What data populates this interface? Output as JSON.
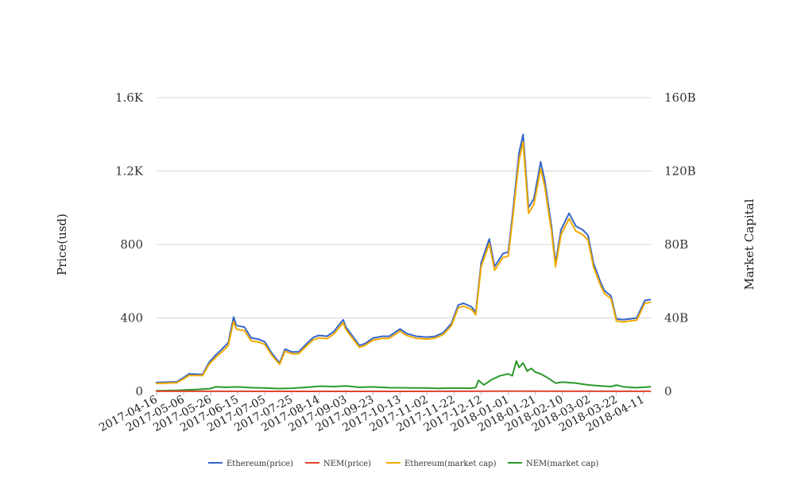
{
  "chart_data": {
    "type": "line",
    "ylabel_left": "Price(usd)",
    "ylabel_right": "Market Capital",
    "left_axis": {
      "ylim": [
        0,
        1600
      ],
      "ticks": [
        0,
        400,
        800,
        1200,
        1600
      ],
      "tick_labels": [
        "0",
        "400",
        "800",
        "1.2K",
        "1.6K"
      ]
    },
    "right_axis": {
      "ylim": [
        0,
        160
      ],
      "unit": "B",
      "ticks": [
        0,
        40,
        80,
        120,
        160
      ],
      "tick_labels": [
        "0",
        "40B",
        "80B",
        "120B",
        "160B"
      ]
    },
    "x_tick_labels": [
      "2017-04-16",
      "2017-05-06",
      "2017-05-26",
      "2017-06-15",
      "2017-07-05",
      "2017-07-25",
      "2017-08-14",
      "2017-09-03",
      "2017-09-23",
      "2017-10-13",
      "2017-11-02",
      "2017-11-22",
      "2017-12-12",
      "2018-01-01",
      "2018-01-21",
      "2018-02-10",
      "2018-03-02",
      "2018-03-22",
      "2018-04-11"
    ],
    "x_range": [
      "2017-04-16",
      "2018-04-17"
    ],
    "grid": true,
    "legend_position": "bottom",
    "series": [
      {
        "name": "Ethereum(price)",
        "axis": "left",
        "color": "#3366cc",
        "points": [
          [
            "2017-04-16",
            48
          ],
          [
            "2017-05-01",
            52
          ],
          [
            "2017-05-06",
            75
          ],
          [
            "2017-05-10",
            95
          ],
          [
            "2017-05-20",
            92
          ],
          [
            "2017-05-25",
            160
          ],
          [
            "2017-05-30",
            200
          ],
          [
            "2017-06-02",
            220
          ],
          [
            "2017-06-08",
            265
          ],
          [
            "2017-06-12",
            405
          ],
          [
            "2017-06-14",
            360
          ],
          [
            "2017-06-20",
            350
          ],
          [
            "2017-06-25",
            290
          ],
          [
            "2017-06-30",
            285
          ],
          [
            "2017-07-05",
            270
          ],
          [
            "2017-07-10",
            210
          ],
          [
            "2017-07-16",
            155
          ],
          [
            "2017-07-20",
            230
          ],
          [
            "2017-07-25",
            215
          ],
          [
            "2017-07-30",
            215
          ],
          [
            "2017-08-05",
            260
          ],
          [
            "2017-08-10",
            295
          ],
          [
            "2017-08-14",
            305
          ],
          [
            "2017-08-20",
            300
          ],
          [
            "2017-08-25",
            325
          ],
          [
            "2017-09-01",
            390
          ],
          [
            "2017-09-03",
            350
          ],
          [
            "2017-09-08",
            300
          ],
          [
            "2017-09-13",
            250
          ],
          [
            "2017-09-17",
            260
          ],
          [
            "2017-09-23",
            290
          ],
          [
            "2017-09-30",
            300
          ],
          [
            "2017-10-05",
            300
          ],
          [
            "2017-10-13",
            340
          ],
          [
            "2017-10-18",
            315
          ],
          [
            "2017-10-25",
            300
          ],
          [
            "2017-11-02",
            295
          ],
          [
            "2017-11-08",
            300
          ],
          [
            "2017-11-14",
            320
          ],
          [
            "2017-11-20",
            370
          ],
          [
            "2017-11-25",
            470
          ],
          [
            "2017-11-29",
            480
          ],
          [
            "2017-12-05",
            460
          ],
          [
            "2017-12-08",
            430
          ],
          [
            "2017-12-12",
            700
          ],
          [
            "2017-12-18",
            830
          ],
          [
            "2017-12-22",
            680
          ],
          [
            "2017-12-28",
            750
          ],
          [
            "2018-01-01",
            760
          ],
          [
            "2018-01-04",
            950
          ],
          [
            "2018-01-09",
            1300
          ],
          [
            "2018-01-12",
            1400
          ],
          [
            "2018-01-16",
            1000
          ],
          [
            "2018-01-20",
            1050
          ],
          [
            "2018-01-25",
            1250
          ],
          [
            "2018-01-28",
            1150
          ],
          [
            "2018-02-02",
            900
          ],
          [
            "2018-02-05",
            700
          ],
          [
            "2018-02-09",
            880
          ],
          [
            "2018-02-15",
            970
          ],
          [
            "2018-02-20",
            900
          ],
          [
            "2018-02-25",
            880
          ],
          [
            "2018-03-01",
            850
          ],
          [
            "2018-03-05",
            700
          ],
          [
            "2018-03-10",
            600
          ],
          [
            "2018-03-13",
            550
          ],
          [
            "2018-03-18",
            520
          ],
          [
            "2018-03-22",
            395
          ],
          [
            "2018-03-27",
            390
          ],
          [
            "2018-04-01",
            395
          ],
          [
            "2018-04-06",
            400
          ],
          [
            "2018-04-12",
            495
          ],
          [
            "2018-04-16",
            500
          ]
        ]
      },
      {
        "name": "NEM(price)",
        "axis": "left",
        "color": "#e0442a",
        "points": [
          [
            "2017-04-16",
            0.3
          ],
          [
            "2017-10-01",
            0.2
          ],
          [
            "2018-01-09",
            1.3
          ],
          [
            "2018-04-16",
            0.3
          ]
        ]
      },
      {
        "name": "Ethereum(market cap)",
        "axis": "right",
        "color": "#f2a900",
        "points": [
          [
            "2017-04-16",
            4.3
          ],
          [
            "2017-05-01",
            4.7
          ],
          [
            "2017-05-06",
            6.8
          ],
          [
            "2017-05-10",
            8.7
          ],
          [
            "2017-05-20",
            8.6
          ],
          [
            "2017-05-25",
            14.9
          ],
          [
            "2017-05-30",
            18.7
          ],
          [
            "2017-06-02",
            20.6
          ],
          [
            "2017-06-08",
            24.9
          ],
          [
            "2017-06-12",
            38.1
          ],
          [
            "2017-06-14",
            33.9
          ],
          [
            "2017-06-20",
            33.0
          ],
          [
            "2017-06-25",
            27.4
          ],
          [
            "2017-06-30",
            27.0
          ],
          [
            "2017-07-05",
            25.6
          ],
          [
            "2017-07-10",
            19.9
          ],
          [
            "2017-07-16",
            14.7
          ],
          [
            "2017-07-20",
            21.9
          ],
          [
            "2017-07-25",
            20.5
          ],
          [
            "2017-07-30",
            20.5
          ],
          [
            "2017-08-05",
            24.8
          ],
          [
            "2017-08-10",
            28.2
          ],
          [
            "2017-08-14",
            29.1
          ],
          [
            "2017-08-20",
            28.7
          ],
          [
            "2017-08-25",
            31.2
          ],
          [
            "2017-09-01",
            37.4
          ],
          [
            "2017-09-03",
            33.6
          ],
          [
            "2017-09-08",
            28.8
          ],
          [
            "2017-09-13",
            24.0
          ],
          [
            "2017-09-17",
            25.0
          ],
          [
            "2017-09-23",
            27.9
          ],
          [
            "2017-09-30",
            28.9
          ],
          [
            "2017-10-05",
            28.9
          ],
          [
            "2017-10-13",
            32.8
          ],
          [
            "2017-10-18",
            30.4
          ],
          [
            "2017-10-25",
            28.9
          ],
          [
            "2017-11-02",
            28.5
          ],
          [
            "2017-11-08",
            29.0
          ],
          [
            "2017-11-14",
            31.0
          ],
          [
            "2017-11-20",
            35.8
          ],
          [
            "2017-11-25",
            45.5
          ],
          [
            "2017-11-29",
            46.5
          ],
          [
            "2017-12-05",
            44.6
          ],
          [
            "2017-12-08",
            41.7
          ],
          [
            "2017-12-12",
            67.9
          ],
          [
            "2017-12-18",
            80.5
          ],
          [
            "2017-12-22",
            66.0
          ],
          [
            "2017-12-28",
            72.8
          ],
          [
            "2018-01-01",
            73.7
          ],
          [
            "2018-01-04",
            92.2
          ],
          [
            "2018-01-09",
            126.1
          ],
          [
            "2018-01-12",
            135.8
          ],
          [
            "2018-01-16",
            97.0
          ],
          [
            "2018-01-20",
            101.9
          ],
          [
            "2018-01-25",
            121.3
          ],
          [
            "2018-01-28",
            111.6
          ],
          [
            "2018-02-02",
            87.3
          ],
          [
            "2018-02-05",
            67.9
          ],
          [
            "2018-02-09",
            85.4
          ],
          [
            "2018-02-15",
            94.1
          ],
          [
            "2018-02-20",
            87.3
          ],
          [
            "2018-02-25",
            85.4
          ],
          [
            "2018-03-01",
            82.5
          ],
          [
            "2018-03-05",
            67.9
          ],
          [
            "2018-03-10",
            58.2
          ],
          [
            "2018-03-13",
            53.4
          ],
          [
            "2018-03-18",
            50.4
          ],
          [
            "2018-03-22",
            38.3
          ],
          [
            "2018-03-27",
            37.8
          ],
          [
            "2018-04-01",
            38.3
          ],
          [
            "2018-04-06",
            38.8
          ],
          [
            "2018-04-12",
            48.0
          ],
          [
            "2018-04-16",
            48.5
          ]
        ]
      },
      {
        "name": "NEM(market cap)",
        "axis": "right",
        "color": "#2a9a2a",
        "points": [
          [
            "2017-04-16",
            0.3
          ],
          [
            "2017-05-01",
            0.5
          ],
          [
            "2017-05-15",
            1.0
          ],
          [
            "2017-05-26",
            1.5
          ],
          [
            "2017-05-30",
            2.5
          ],
          [
            "2017-06-05",
            2.2
          ],
          [
            "2017-06-15",
            2.4
          ],
          [
            "2017-06-25",
            2.0
          ],
          [
            "2017-07-05",
            1.8
          ],
          [
            "2017-07-15",
            1.5
          ],
          [
            "2017-07-25",
            1.7
          ],
          [
            "2017-08-05",
            2.2
          ],
          [
            "2017-08-15",
            2.8
          ],
          [
            "2017-08-25",
            2.6
          ],
          [
            "2017-09-03",
            3.0
          ],
          [
            "2017-09-13",
            2.2
          ],
          [
            "2017-09-23",
            2.4
          ],
          [
            "2017-10-05",
            2.0
          ],
          [
            "2017-10-20",
            1.9
          ],
          [
            "2017-11-02",
            1.8
          ],
          [
            "2017-11-10",
            1.6
          ],
          [
            "2017-11-22",
            1.8
          ],
          [
            "2017-12-03",
            1.7
          ],
          [
            "2017-12-08",
            2.0
          ],
          [
            "2017-12-10",
            6.0
          ],
          [
            "2017-12-14",
            3.5
          ],
          [
            "2017-12-20",
            6.5
          ],
          [
            "2017-12-26",
            8.5
          ],
          [
            "2018-01-01",
            9.5
          ],
          [
            "2018-01-04",
            8.5
          ],
          [
            "2018-01-07",
            16.5
          ],
          [
            "2018-01-09",
            13.0
          ],
          [
            "2018-01-12",
            15.5
          ],
          [
            "2018-01-15",
            11.0
          ],
          [
            "2018-01-18",
            12.5
          ],
          [
            "2018-01-21",
            10.5
          ],
          [
            "2018-01-25",
            9.5
          ],
          [
            "2018-01-30",
            7.5
          ],
          [
            "2018-02-05",
            4.5
          ],
          [
            "2018-02-10",
            5.0
          ],
          [
            "2018-02-20",
            4.5
          ],
          [
            "2018-03-01",
            3.5
          ],
          [
            "2018-03-10",
            3.0
          ],
          [
            "2018-03-18",
            2.6
          ],
          [
            "2018-03-22",
            3.4
          ],
          [
            "2018-03-27",
            2.5
          ],
          [
            "2018-04-05",
            2.0
          ],
          [
            "2018-04-12",
            2.3
          ],
          [
            "2018-04-16",
            2.5
          ]
        ]
      }
    ]
  }
}
